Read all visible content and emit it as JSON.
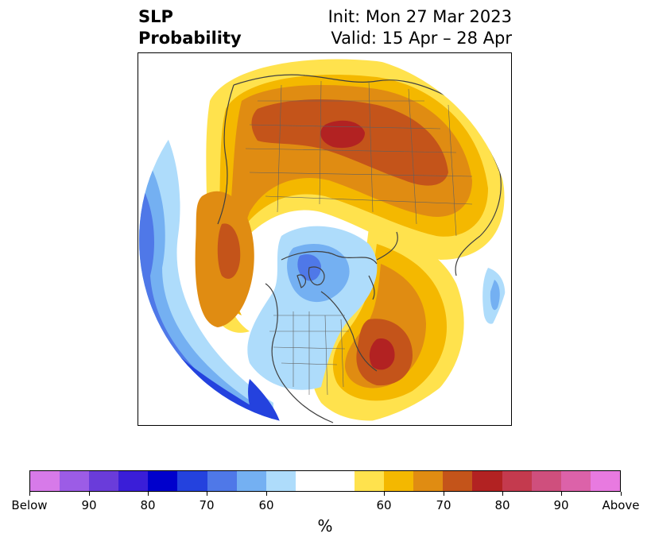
{
  "header": {
    "title_line1": "SLP",
    "title_line2": "Probability",
    "init_label": "Init: Mon 27 Mar 2023",
    "valid_label": "Valid: 15 Apr – 28 Apr"
  },
  "colorbar": {
    "unit_label": "%",
    "colors": [
      "#d77ae9",
      "#9c5ce6",
      "#6a3cda",
      "#3a1ed8",
      "#0000cc",
      "#2442de",
      "#4f78e8",
      "#74b0f2",
      "#aedcfb",
      "#ffffff",
      "#ffffff",
      "#ffe24d",
      "#f4b800",
      "#e08c12",
      "#c4541a",
      "#b22222",
      "#c43a4e",
      "#cf4f7d",
      "#dc62a9",
      "#e87ae0"
    ],
    "tick_labels": [
      "Below",
      "90",
      "80",
      "70",
      "60",
      "60",
      "70",
      "80",
      "90",
      "Above"
    ]
  },
  "map": {
    "projection": "north-polar-stereographic"
  }
}
